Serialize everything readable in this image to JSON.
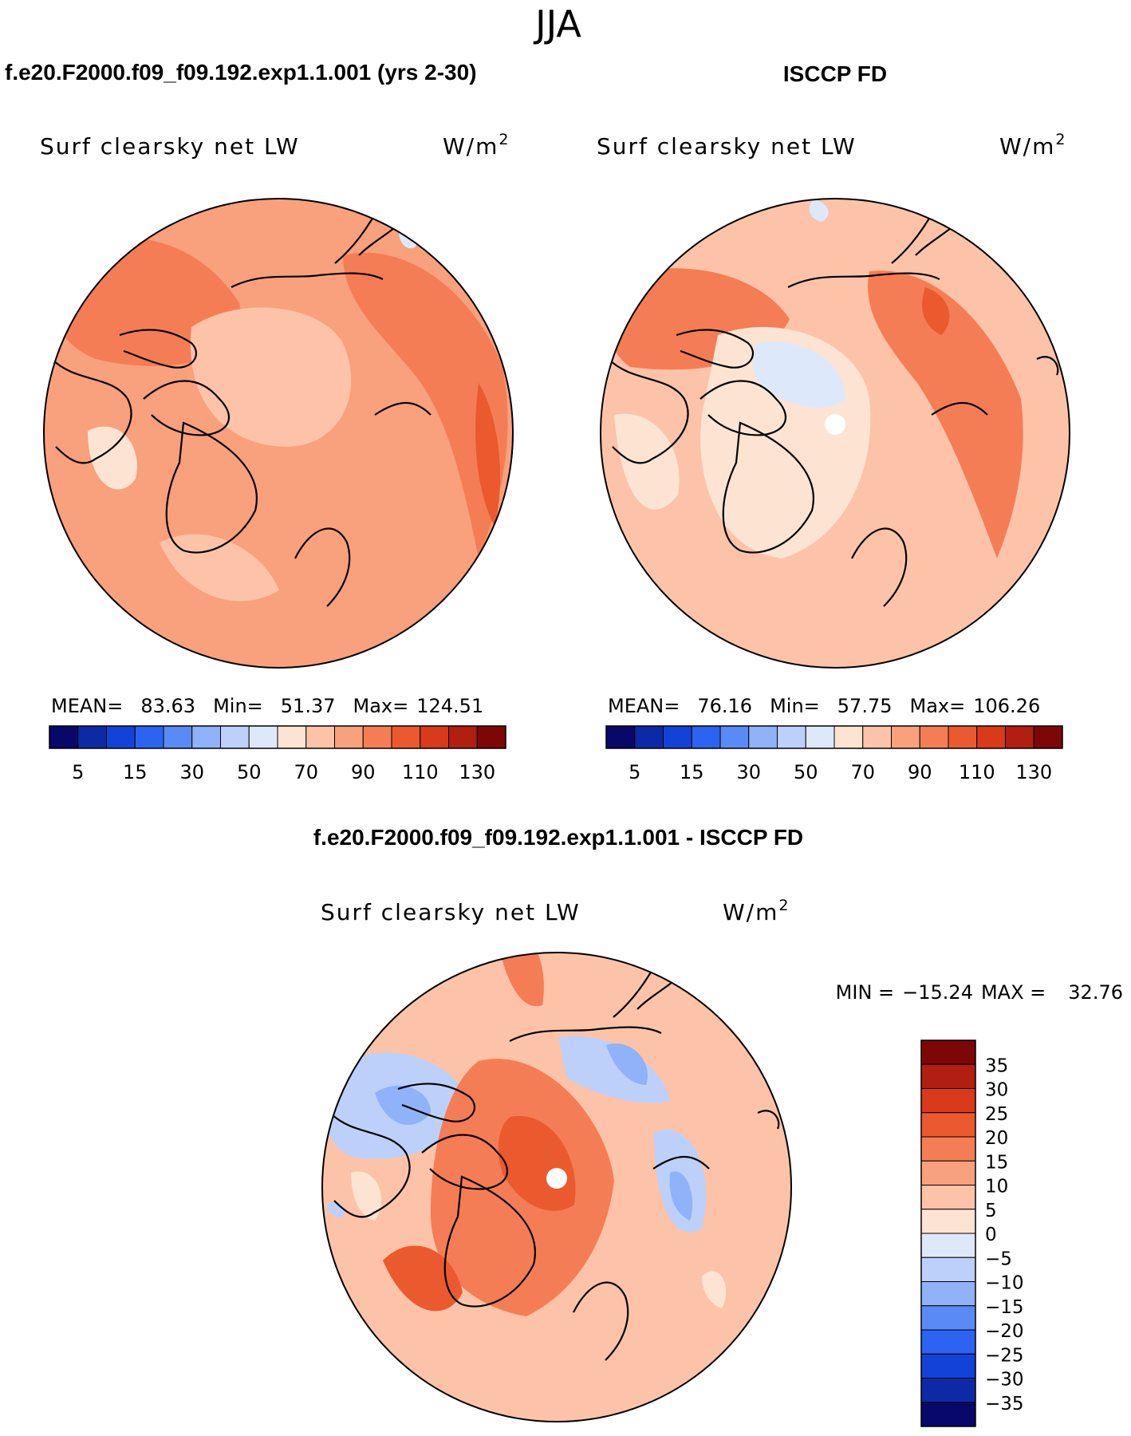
{
  "season": "JJA",
  "panels": [
    {
      "title": "f.e20.F2000.f09_f09.192.exp1.1.001 (yrs 2-30)",
      "variable": "Surf clearsky net LW",
      "units": "W/m",
      "units_sup": "2",
      "stats": {
        "mean_label": "MEAN=",
        "mean": "83.63",
        "min_label": "Min=",
        "min": "51.37",
        "max_label": "Max=",
        "max": "124.51"
      }
    },
    {
      "title": "ISCCP FD",
      "variable": "Surf clearsky net LW",
      "units": "W/m",
      "units_sup": "2",
      "stats": {
        "mean_label": "MEAN=",
        "mean": "76.16",
        "min_label": "Min=",
        "min": "57.75",
        "max_label": "Max=",
        "max": "106.26"
      }
    }
  ],
  "difference": {
    "title": "f.e20.F2000.f09_f09.192.exp1.1.001 - ISCCP FD",
    "variable": "Surf clearsky net LW",
    "units": "W/m",
    "units_sup": "2",
    "min_label": "MIN =",
    "min": "−15.24",
    "max_label": "MAX =",
    "max": "32.76"
  },
  "chart_data": [
    {
      "type": "heatmap",
      "projection": "north-polar-stereographic",
      "title": "f.e20.F2000.f09_f09.192.exp1.1.001 (yrs 2-30)",
      "subtitle": "Surf clearsky net LW",
      "units": "W/m2",
      "mean": 83.63,
      "min": 51.37,
      "max": 124.51,
      "colorbar_levels": [
        5,
        10,
        15,
        20,
        30,
        40,
        50,
        60,
        70,
        80,
        90,
        100,
        110,
        120,
        130
      ],
      "colorbar_tick_labels": [
        "5",
        "15",
        "30",
        "50",
        "70",
        "90",
        "110",
        "130"
      ],
      "colorbar_colors": [
        "#08086b",
        "#0d2aa6",
        "#1242d8",
        "#2c63f0",
        "#5a8af5",
        "#8fb2f8",
        "#bcd0fa",
        "#dde9fb",
        "#fde3d2",
        "#fcc3a8",
        "#f9a07d",
        "#f47d56",
        "#ea5a2e",
        "#d83a1a",
        "#b21e10",
        "#7d0707"
      ]
    },
    {
      "type": "heatmap",
      "projection": "north-polar-stereographic",
      "title": "ISCCP FD",
      "subtitle": "Surf clearsky net LW",
      "units": "W/m2",
      "mean": 76.16,
      "min": 57.75,
      "max": 106.26,
      "colorbar_levels": [
        5,
        10,
        15,
        20,
        30,
        40,
        50,
        60,
        70,
        80,
        90,
        100,
        110,
        120,
        130
      ],
      "colorbar_tick_labels": [
        "5",
        "15",
        "30",
        "50",
        "70",
        "90",
        "110",
        "130"
      ],
      "colorbar_colors": [
        "#08086b",
        "#0d2aa6",
        "#1242d8",
        "#2c63f0",
        "#5a8af5",
        "#8fb2f8",
        "#bcd0fa",
        "#dde9fb",
        "#fde3d2",
        "#fcc3a8",
        "#f9a07d",
        "#f47d56",
        "#ea5a2e",
        "#d83a1a",
        "#b21e10",
        "#7d0707"
      ]
    },
    {
      "type": "heatmap",
      "projection": "north-polar-stereographic",
      "title": "f.e20.F2000.f09_f09.192.exp1.1.001 - ISCCP FD",
      "subtitle": "Surf clearsky net LW",
      "units": "W/m2",
      "min": -15.24,
      "max": 32.76,
      "colorbar_levels": [
        35,
        30,
        25,
        20,
        15,
        10,
        5,
        0,
        -5,
        -10,
        -15,
        -20,
        -25,
        -30,
        -35
      ],
      "colorbar_tick_labels": [
        "35",
        "30",
        "25",
        "20",
        "15",
        "10",
        "5",
        "0",
        "−5",
        "−10",
        "−15",
        "−20",
        "−25",
        "−30",
        "−35"
      ],
      "colorbar_colors": [
        "#7d0707",
        "#b21e10",
        "#d83a1a",
        "#ea5a2e",
        "#f47d56",
        "#f9a07d",
        "#fcc3a8",
        "#fde3d2",
        "#dde9fb",
        "#bcd0fa",
        "#8fb2f8",
        "#5a8af5",
        "#2c63f0",
        "#1242d8",
        "#0d2aa6",
        "#08086b"
      ]
    }
  ]
}
